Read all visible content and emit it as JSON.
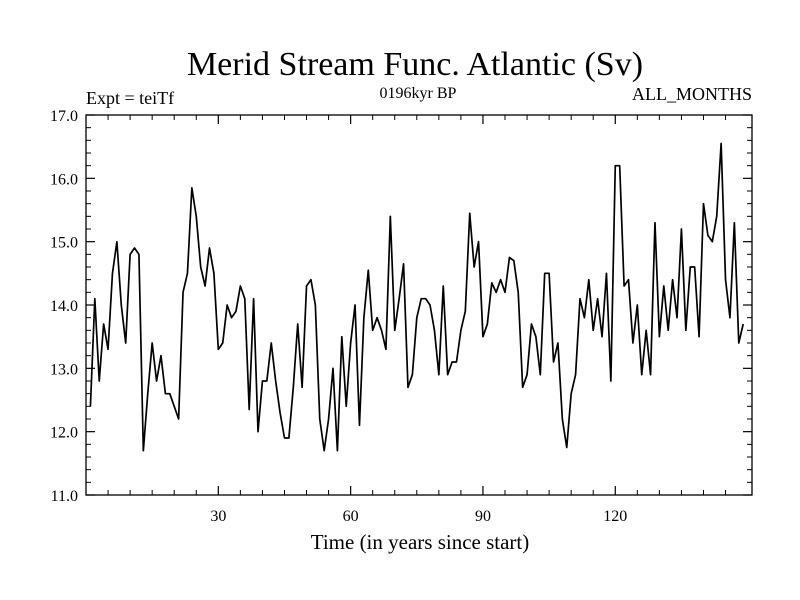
{
  "chart_data": {
    "type": "line",
    "title": "Merid Stream Func. Atlantic (Sv)",
    "subtitle_left": "Expt = teiTf",
    "subtitle_center": "0196kyr BP",
    "subtitle_right": "ALL_MONTHS",
    "xlabel": "Time (in years since start)",
    "ylabel": "",
    "xlim": [
      0,
      151
    ],
    "ylim": [
      11.0,
      17.0
    ],
    "x_ticks": [
      30,
      60,
      90,
      120
    ],
    "x_tick_labels": [
      "30",
      "60",
      "90",
      "120"
    ],
    "y_ticks": [
      11,
      12,
      13,
      14,
      15,
      16,
      17
    ],
    "y_tick_labels": [
      "11.0",
      "12.0",
      "13.0",
      "14.0",
      "15.0",
      "16.0",
      "17.0"
    ],
    "color": "#000000",
    "series": [
      {
        "name": "Merid Stream Func",
        "values": [
          12.4,
          14.1,
          12.8,
          13.7,
          13.3,
          14.5,
          15.0,
          14.0,
          13.4,
          14.8,
          14.9,
          14.8,
          11.7,
          12.6,
          13.4,
          12.8,
          13.2,
          12.6,
          12.6,
          12.4,
          12.2,
          14.2,
          14.5,
          15.85,
          15.4,
          14.6,
          14.3,
          14.9,
          14.5,
          13.3,
          13.4,
          14.0,
          13.8,
          13.9,
          14.3,
          14.1,
          12.35,
          14.1,
          12.0,
          12.8,
          12.8,
          13.4,
          12.8,
          12.3,
          11.9,
          11.9,
          12.7,
          13.7,
          12.7,
          14.3,
          14.4,
          14.0,
          12.2,
          11.7,
          12.2,
          13.0,
          11.7,
          13.5,
          12.4,
          13.4,
          14.0,
          12.1,
          13.8,
          14.55,
          13.6,
          13.8,
          13.6,
          13.3,
          15.4,
          13.6,
          14.1,
          14.65,
          12.7,
          12.9,
          13.8,
          14.1,
          14.1,
          14.0,
          13.6,
          12.9,
          14.3,
          12.9,
          13.1,
          13.1,
          13.6,
          13.9,
          15.45,
          14.6,
          15.0,
          13.5,
          13.7,
          14.35,
          14.2,
          14.4,
          14.2,
          14.75,
          14.7,
          14.2,
          12.7,
          12.9,
          13.7,
          13.5,
          12.9,
          14.5,
          14.5,
          13.1,
          13.4,
          12.2,
          11.75,
          12.6,
          12.9,
          14.1,
          13.8,
          14.4,
          13.6,
          14.1,
          13.5,
          14.5,
          12.8,
          16.2,
          16.2,
          14.3,
          14.4,
          13.4,
          14.0,
          12.9,
          13.6,
          12.9,
          15.3,
          13.5,
          14.3,
          13.6,
          14.4,
          13.8,
          15.2,
          13.6,
          14.6,
          14.6,
          13.5,
          15.6,
          15.1,
          15.0,
          15.4,
          16.55,
          14.4,
          13.8,
          15.3,
          13.4,
          13.7
        ]
      }
    ]
  }
}
